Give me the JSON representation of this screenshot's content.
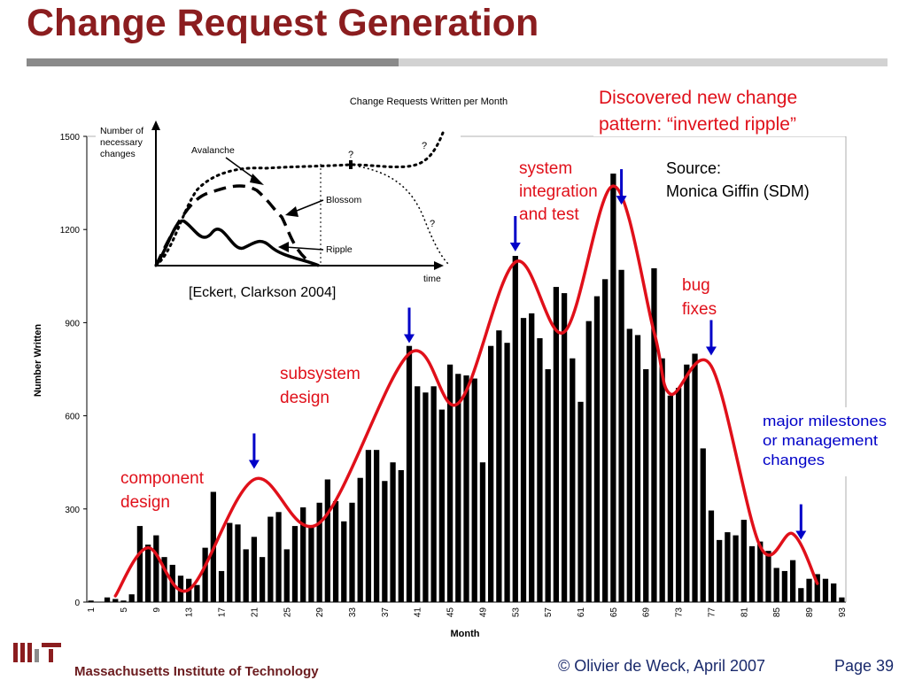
{
  "slide": {
    "title": "Change Request Generation",
    "footer_org": "Massachusetts Institute of Technology",
    "footer_copyright": "© Olivier de Weck, April 2007",
    "footer_page": "Page 39"
  },
  "colors": {
    "title": "#8b1d1f",
    "annotation_red": "#e0101a",
    "annotation_blue": "#0000c8",
    "bars": "#000000",
    "trend_curve": "#e0101a"
  },
  "chart_data": {
    "type": "bar",
    "title": "Change Requests Written per Month",
    "xlabel": "Month",
    "ylabel": "Number Written",
    "ylim": [
      0,
      1500
    ],
    "yticks": [
      0,
      300,
      600,
      900,
      1200,
      1500
    ],
    "xtick_labels": [
      "1",
      "5",
      "9",
      "13",
      "17",
      "21",
      "25",
      "29",
      "33",
      "37",
      "41",
      "45",
      "49",
      "53",
      "57",
      "61",
      "65",
      "69",
      "73",
      "77",
      "81",
      "85",
      "89",
      "93"
    ],
    "months": [
      1,
      2,
      3,
      4,
      5,
      6,
      7,
      8,
      9,
      10,
      11,
      12,
      13,
      14,
      15,
      16,
      17,
      18,
      19,
      20,
      21,
      22,
      23,
      24,
      25,
      26,
      27,
      28,
      29,
      30,
      31,
      32,
      33,
      34,
      35,
      36,
      37,
      38,
      39,
      40,
      41,
      42,
      43,
      44,
      45,
      46,
      47,
      48,
      49,
      50,
      51,
      52,
      53,
      54,
      55,
      56,
      57,
      58,
      59,
      60,
      61,
      62,
      63,
      64,
      65,
      66,
      67,
      68,
      69,
      70,
      71,
      72,
      73,
      74,
      75,
      76,
      77,
      78,
      79,
      80,
      81,
      82,
      83,
      84,
      85,
      86,
      87,
      88,
      89,
      90,
      91,
      92,
      93
    ],
    "values": [
      5,
      0,
      15,
      10,
      5,
      25,
      245,
      185,
      215,
      145,
      120,
      85,
      75,
      55,
      175,
      355,
      100,
      255,
      250,
      170,
      210,
      145,
      275,
      290,
      170,
      245,
      305,
      245,
      320,
      395,
      325,
      260,
      320,
      400,
      490,
      490,
      390,
      450,
      425,
      825,
      695,
      675,
      695,
      620,
      765,
      735,
      730,
      720,
      450,
      825,
      875,
      835,
      1115,
      915,
      930,
      850,
      750,
      1015,
      995,
      785,
      645,
      905,
      985,
      1040,
      1380,
      1070,
      880,
      860,
      750,
      1075,
      785,
      665,
      690,
      765,
      800,
      495,
      295,
      200,
      225,
      215,
      265,
      180,
      195,
      165,
      110,
      100,
      135,
      45,
      75,
      90,
      75,
      60,
      15
    ],
    "trend_curve": {
      "label": "",
      "points": [
        [
          4,
          20
        ],
        [
          8,
          175
        ],
        [
          13,
          40
        ],
        [
          21,
          395
        ],
        [
          29,
          255
        ],
        [
          40,
          800
        ],
        [
          46,
          640
        ],
        [
          53,
          1095
        ],
        [
          59,
          870
        ],
        [
          65,
          1340
        ],
        [
          70,
          870
        ],
        [
          72,
          670
        ],
        [
          77,
          760
        ],
        [
          83,
          180
        ],
        [
          87,
          220
        ],
        [
          90,
          60
        ]
      ]
    },
    "milestone_arrows": [
      21,
      40,
      53,
      66,
      77,
      88
    ]
  },
  "annotations": {
    "discovery_line1": "Discovered new change",
    "discovery_line2": "pattern: “inverted ripple”",
    "source_line1": "Source:",
    "source_line2": "Monica Giffin (SDM)",
    "system_line1": "system",
    "system_line2": "integration",
    "system_line3": "and test",
    "bug_line1": "bug",
    "bug_line2": "fixes",
    "subsystem_line1": "subsystem",
    "subsystem_line2": "design",
    "component_line1": "component",
    "component_line2": "design",
    "milestones_line1": "major milestones",
    "milestones_line2": "or management",
    "milestones_line3": "changes"
  },
  "inset": {
    "ylabel_line1": "Number of",
    "ylabel_line2": "necessary",
    "ylabel_line3": "changes",
    "xlabel": "time",
    "label_avalanche": "Avalanche",
    "label_blossom": "Blossom",
    "label_ripple": "Ripple",
    "question1": "?",
    "question2": "?",
    "question3": "?",
    "citation": "[Eckert, Clarkson 2004]"
  }
}
